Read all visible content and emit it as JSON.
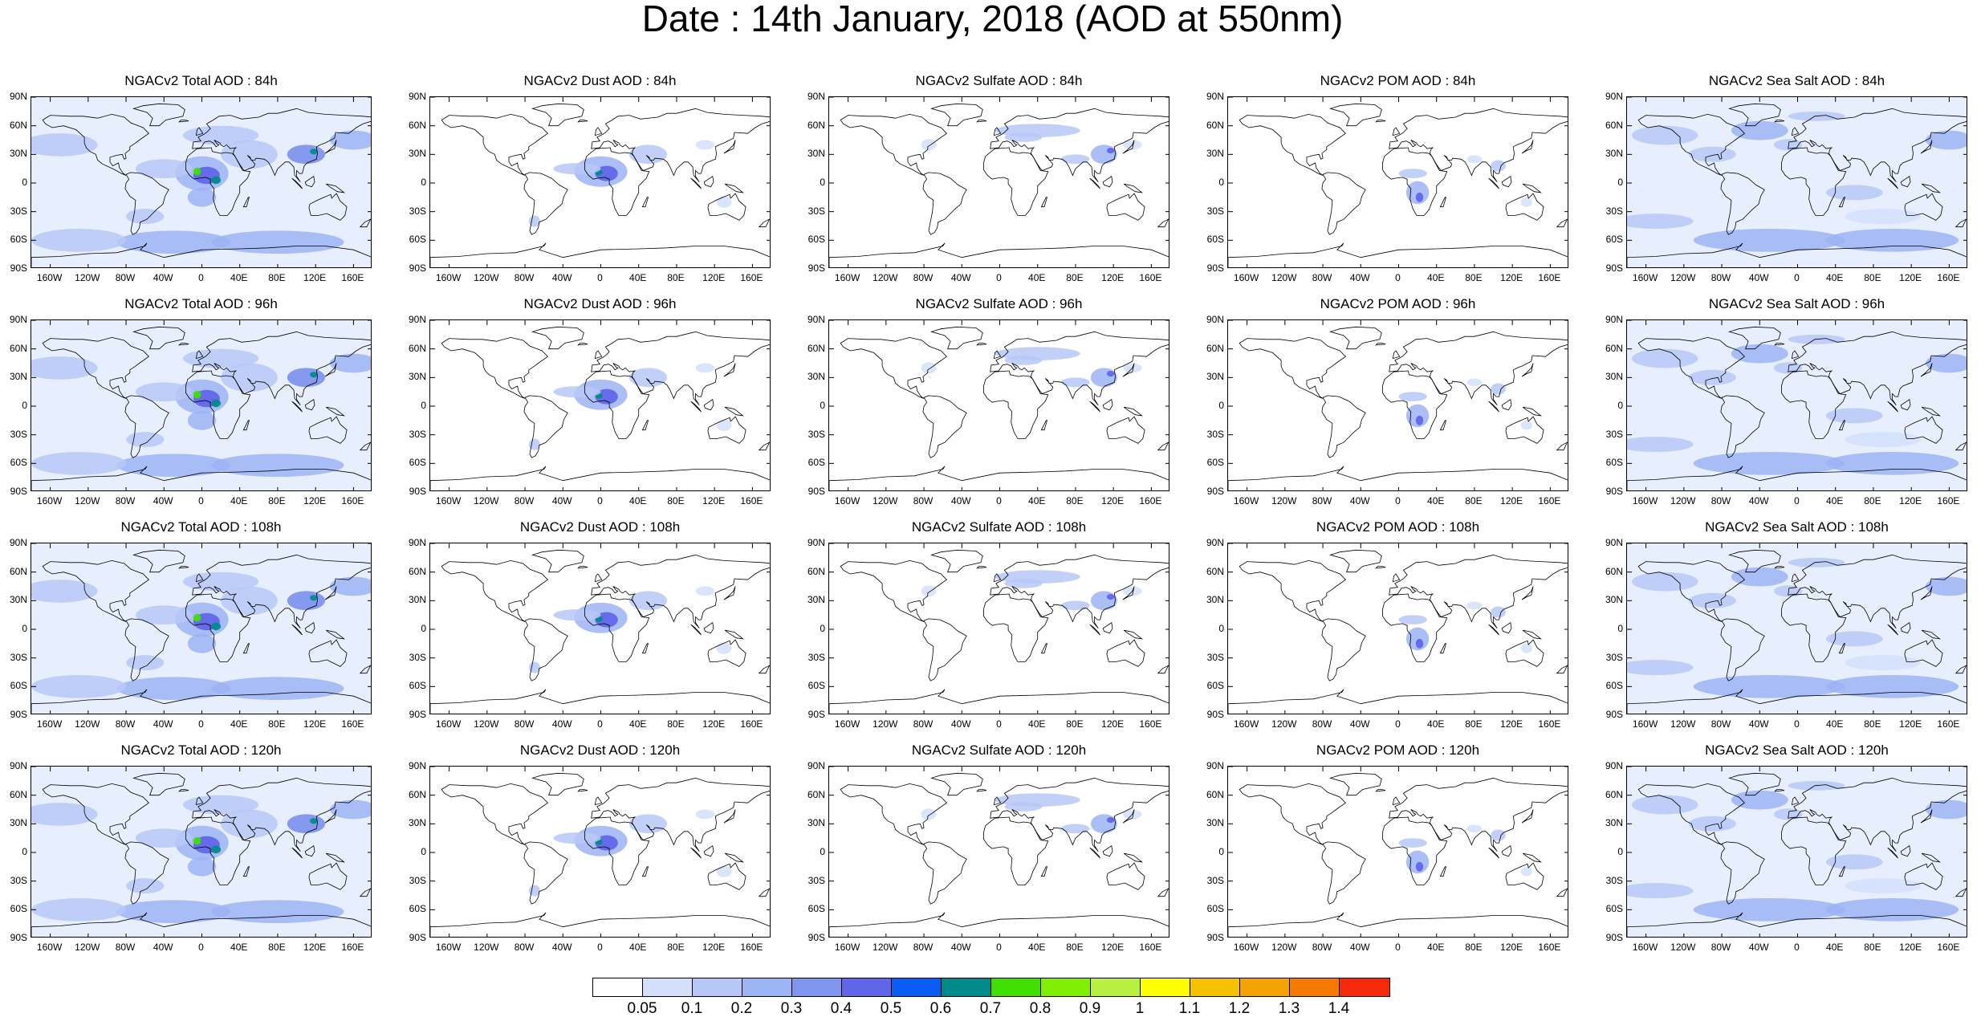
{
  "title": "Date : 14th January, 2018 (AOD at 550nm)",
  "chart_data": {
    "type": "heatmap",
    "layout": "4 rows x 5 columns of global maps",
    "rows_forecast_hour": [
      "84h",
      "96h",
      "108h",
      "120h"
    ],
    "columns_species": [
      "Total",
      "Dust",
      "Sulfate",
      "POM",
      "Sea Salt"
    ],
    "panels": [
      [
        "NGACv2 Total AOD : 84h",
        "NGACv2 Dust AOD : 84h",
        "NGACv2 Sulfate AOD : 84h",
        "NGACv2 POM AOD : 84h",
        "NGACv2 Sea Salt AOD : 84h"
      ],
      [
        "NGACv2 Total AOD : 96h",
        "NGACv2 Dust AOD : 96h",
        "NGACv2 Sulfate AOD : 96h",
        "NGACv2 POM AOD : 96h",
        "NGACv2 Sea Salt AOD : 96h"
      ],
      [
        "NGACv2 Total AOD : 108h",
        "NGACv2 Dust AOD : 108h",
        "NGACv2 Sulfate AOD : 108h",
        "NGACv2 POM AOD : 108h",
        "NGACv2 Sea Salt AOD : 108h"
      ],
      [
        "NGACv2 Total AOD : 120h",
        "NGACv2 Dust AOD : 120h",
        "NGACv2 Sulfate AOD : 120h",
        "NGACv2 POM AOD : 120h",
        "NGACv2 Sea Salt  AOD : 120h"
      ]
    ],
    "y_ticks": [
      "90N",
      "60N",
      "30N",
      "0",
      "30S",
      "60S",
      "90S"
    ],
    "x_ticks": [
      "160W",
      "120W",
      "80W",
      "40W",
      "0",
      "40E",
      "80E",
      "120E",
      "160E"
    ],
    "lon_range": [
      -180,
      180
    ],
    "lat_range": [
      -90,
      90
    ],
    "colorbar": {
      "levels": [
        "0.05",
        "0.1",
        "0.2",
        "0.3",
        "0.4",
        "0.5",
        "0.6",
        "0.7",
        "0.8",
        "0.9",
        "1",
        "1.1",
        "1.2",
        "1.3",
        "1.4"
      ],
      "colors": [
        "#ffffff",
        "#d4e0fb",
        "#b7c8f7",
        "#9cb3f4",
        "#8095ee",
        "#6166e8",
        "#0a5cf2",
        "#008b8b",
        "#3fe000",
        "#80f000",
        "#b8f040",
        "#ffff00",
        "#f5c200",
        "#f5a300",
        "#f57a00",
        "#f52a0a"
      ]
    }
  }
}
